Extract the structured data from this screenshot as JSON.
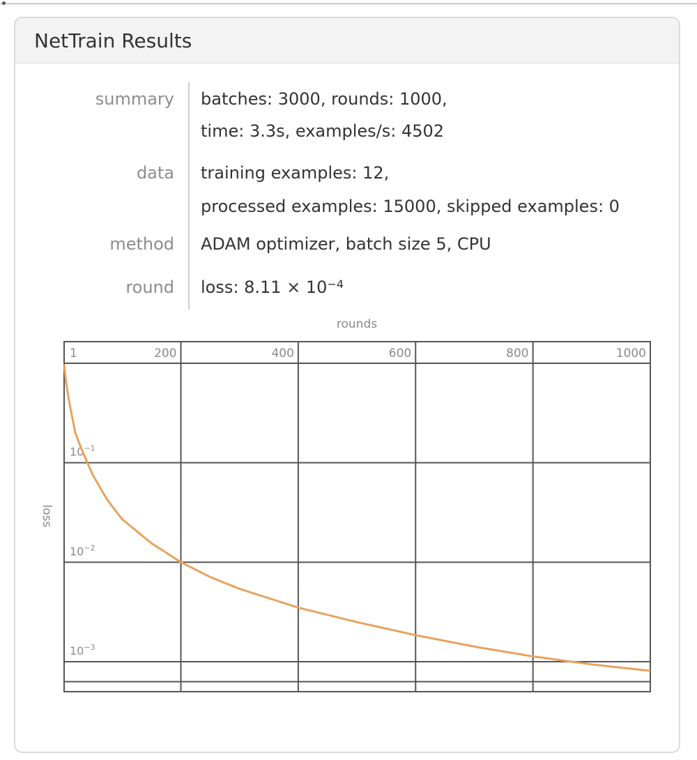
{
  "window": {
    "title": "NetTrain Results"
  },
  "info": {
    "summary_label": "summary",
    "summary_line1": "batches: 3000, rounds: 1000,",
    "summary_line2": "time: 3.3s, examples/s: 4502",
    "data_label": "data",
    "data_line1": "training examples: 12,",
    "data_line2": "processed examples: 15000, skipped examples: 0",
    "method_label": "method",
    "method_value": "ADAM optimizer, batch size 5, CPU",
    "round_label": "round",
    "round_prefix": "loss: 8.11 × 10",
    "round_exponent": "−4"
  },
  "chart_data": {
    "type": "line",
    "xlabel": "rounds",
    "ylabel": "loss",
    "x_scale": "linear",
    "y_scale": "log",
    "xlim": [
      1,
      1000
    ],
    "ylim": [
      0.0005,
      1
    ],
    "x_ticks": [
      {
        "value": 1,
        "label": "1"
      },
      {
        "value": 200,
        "label": "200"
      },
      {
        "value": 400,
        "label": "400"
      },
      {
        "value": 600,
        "label": "600"
      },
      {
        "value": 800,
        "label": "800"
      },
      {
        "value": 1000,
        "label": "1000"
      }
    ],
    "y_ticks": [
      {
        "value": 0.1,
        "base": "10",
        "exp": "−1"
      },
      {
        "value": 0.01,
        "base": "10",
        "exp": "−2"
      },
      {
        "value": 0.001,
        "base": "10",
        "exp": "−3"
      }
    ],
    "grid": true,
    "series": [
      {
        "color": "#e8a25d",
        "x": [
          1,
          5,
          10,
          20,
          30,
          50,
          75,
          100,
          150,
          200,
          250,
          300,
          400,
          500,
          600,
          700,
          800,
          900,
          1000
        ],
        "y": [
          0.98,
          0.6,
          0.4,
          0.2,
          0.14,
          0.075,
          0.042,
          0.027,
          0.0155,
          0.01,
          0.0071,
          0.0054,
          0.0035,
          0.0025,
          0.00185,
          0.00142,
          0.00113,
          0.00094,
          0.00081
        ]
      }
    ]
  }
}
